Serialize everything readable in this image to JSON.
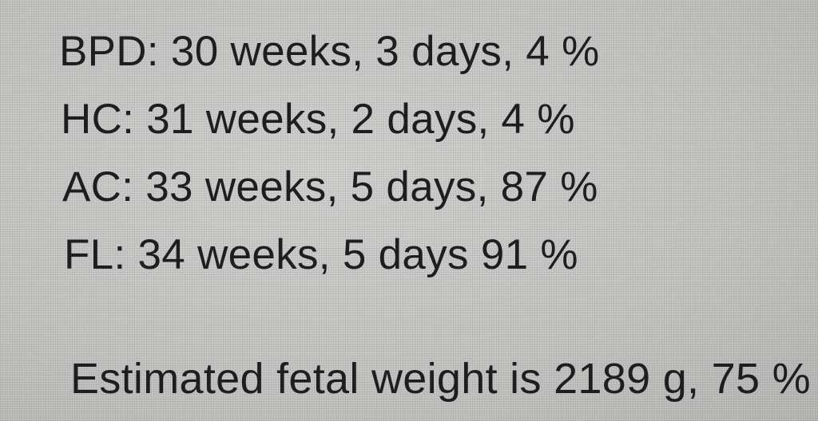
{
  "measurements": [
    {
      "text": "BPD: 30 weeks, 3 days, 4 %"
    },
    {
      "text": "HC: 31 weeks, 2 days, 4 %"
    },
    {
      "text": "AC: 33 weeks, 5 days, 87 %"
    },
    {
      "text": "FL: 34 weeks, 5 days 91 %"
    }
  ],
  "estimated_fetal_weight": "Estimated fetal weight is 2189 g, 75 %"
}
